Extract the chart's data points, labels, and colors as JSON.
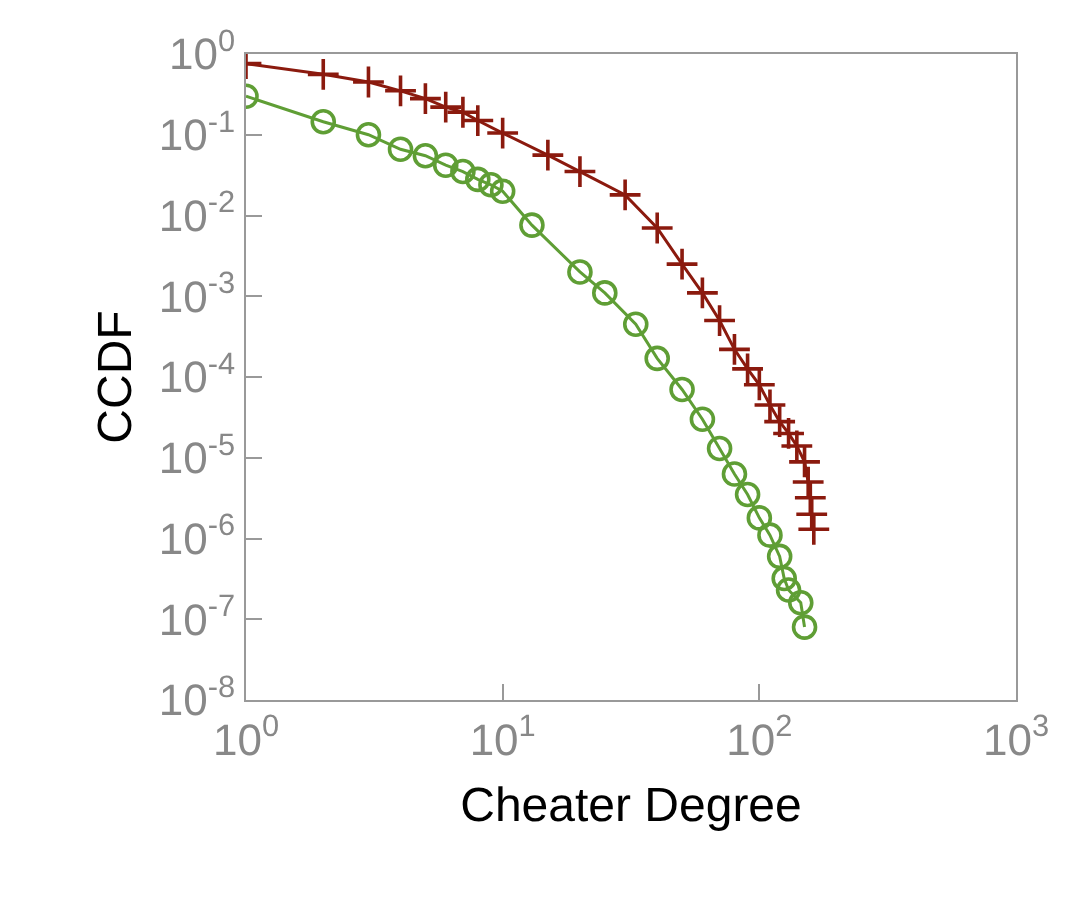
{
  "chart_data": {
    "type": "line",
    "xlabel": "Cheater Degree",
    "ylabel": "CCDF",
    "log": "xy",
    "grid": false,
    "xlim": [
      1,
      1000
    ],
    "ylim": [
      1e-08,
      1
    ],
    "xticks": [
      {
        "value": 1,
        "label": "10$^{0}$"
      },
      {
        "value": 10,
        "label": "10$^{1}$"
      },
      {
        "value": 100,
        "label": "10$^{2}$"
      },
      {
        "value": 1000,
        "label": "10$^{3}$"
      }
    ],
    "yticks": [
      {
        "value": 1e-08,
        "label": "10$^{-8}$"
      },
      {
        "value": 1e-07,
        "label": "10$^{-7}$"
      },
      {
        "value": 1e-06,
        "label": "10$^{-6}$"
      },
      {
        "value": 1e-05,
        "label": "10$^{-5}$"
      },
      {
        "value": 0.0001,
        "label": "10$^{-4}$"
      },
      {
        "value": 0.001,
        "label": "10$^{-3}$"
      },
      {
        "value": 0.01,
        "label": "10$^{-2}$"
      },
      {
        "value": 0.1,
        "label": "10$^{-1}$"
      },
      {
        "value": 1,
        "label": "10$^{0}$"
      }
    ],
    "series": [
      {
        "color": "#8b1a0e",
        "marker": "cross",
        "x": [
          1,
          2,
          3,
          4,
          5,
          6,
          7,
          8,
          10,
          15,
          20,
          30,
          40,
          50,
          60,
          70,
          80,
          90,
          100,
          110,
          120,
          130,
          140,
          150,
          155,
          158,
          160,
          163
        ],
        "values": [
          0.76,
          0.56,
          0.45,
          0.35,
          0.28,
          0.22,
          0.19,
          0.15,
          0.105,
          0.056,
          0.035,
          0.018,
          0.007,
          0.0025,
          0.0011,
          0.0005,
          0.00022,
          0.000126,
          8e-05,
          4.5e-05,
          2.8e-05,
          2e-05,
          1.4e-05,
          8.9e-06,
          5e-06,
          3.2e-06,
          2e-06,
          1.3e-06
        ]
      },
      {
        "color": "#5f9e35",
        "marker": "circle",
        "x": [
          1,
          2,
          3,
          4,
          5,
          6,
          7,
          8,
          9,
          10,
          13,
          20,
          25,
          33,
          40,
          50,
          60,
          70,
          80,
          90,
          100,
          110,
          120,
          125,
          130,
          145,
          150
        ],
        "values": [
          0.3,
          0.145,
          0.1,
          0.066,
          0.055,
          0.042,
          0.035,
          0.028,
          0.024,
          0.02,
          0.0076,
          0.002,
          0.0011,
          0.00045,
          0.00017,
          7e-05,
          3e-05,
          1.3e-05,
          6.3e-06,
          3.5e-06,
          1.8e-06,
          1.1e-06,
          6e-07,
          3.2e-07,
          2.3e-07,
          1.6e-07,
          8e-08
        ]
      }
    ]
  }
}
